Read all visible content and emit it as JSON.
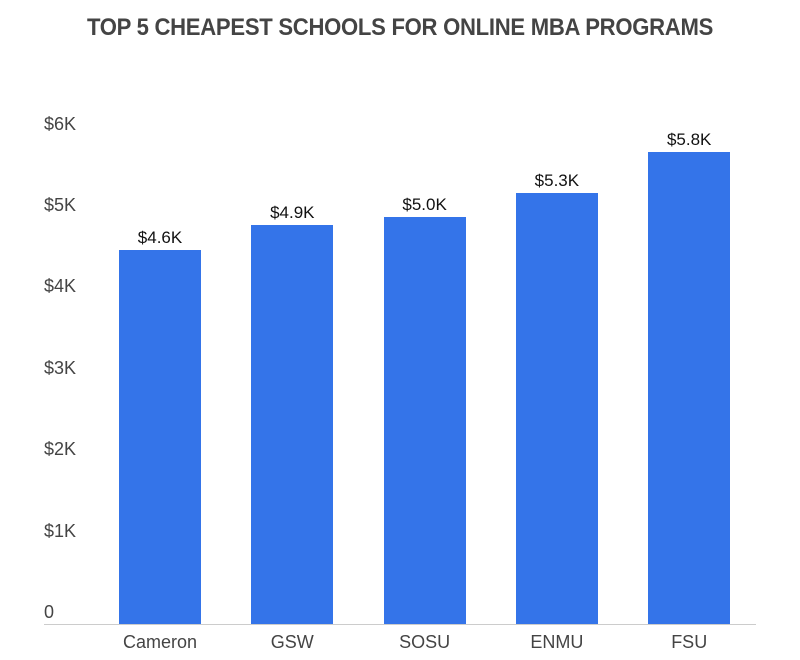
{
  "chart_data": {
    "type": "bar",
    "title": "TOP 5 CHEAPEST SCHOOLS FOR ONLINE MBA PROGRAMS",
    "xlabel": "",
    "ylabel": "",
    "categories": [
      "Cameron",
      "GSW",
      "SOSU",
      "ENMU",
      "FSU"
    ],
    "values": [
      4600,
      4900,
      5000,
      5300,
      5800
    ],
    "value_labels": [
      "$4.6K",
      "$4.9K",
      "$5.0K",
      "$5.3K",
      "$5.8K"
    ],
    "ylim": [
      0,
      6000
    ],
    "yticks": [
      0,
      1000,
      2000,
      3000,
      4000,
      5000,
      6000
    ],
    "ytick_labels": [
      "0",
      "$1K",
      "$2K",
      "$3K",
      "$4K",
      "$5K",
      "$6K"
    ],
    "grid": false,
    "legend": null,
    "bar_color": "#3474e9"
  }
}
